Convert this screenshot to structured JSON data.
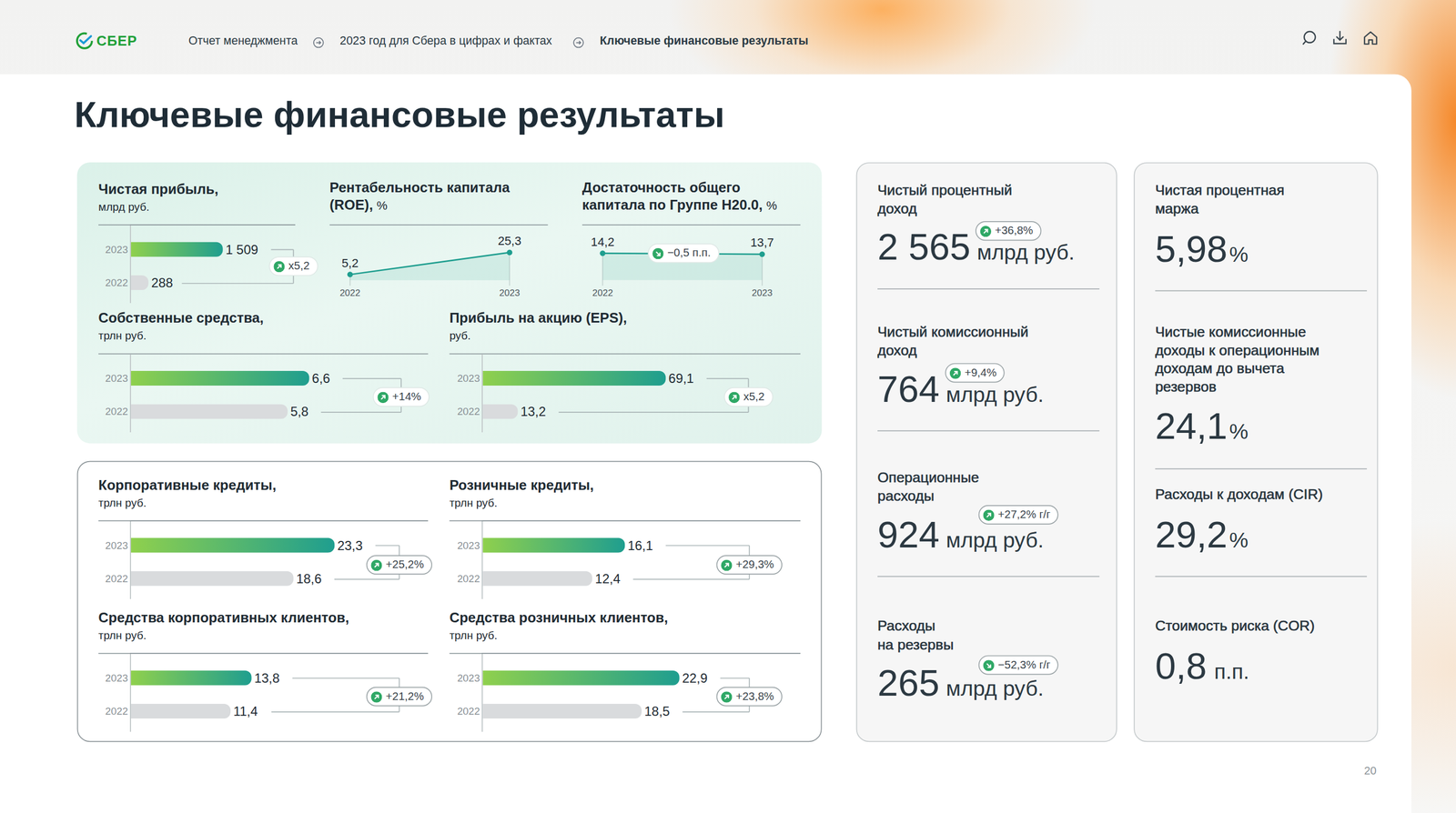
{
  "header": {
    "logo": "СБЕР",
    "breadcrumbs": [
      "Отчет менеджмента",
      "2023 год для Сбера в цифрах и фактах",
      "Ключевые финансовые результаты"
    ]
  },
  "title": "Ключевые финансовые результаты",
  "chart_data": [
    {
      "type": "bar",
      "orientation": "horizontal",
      "title": [
        "Чистая прибыль,"
      ],
      "unit": "млрд руб.",
      "categories": [
        "2023",
        "2022"
      ],
      "values": [
        1509,
        288
      ],
      "value_labels": [
        "1 509",
        "288"
      ],
      "colors": [
        "#1f9e8f",
        "#d9dbdd"
      ],
      "data_labels": true,
      "xlim": [
        0,
        2700
      ],
      "xticks": [],
      "tick_labels": "y",
      "grid": false,
      "annotation": "x5,2"
    },
    {
      "type": "line",
      "title": [
        "Рентабельность капитала",
        "(ROE),"
      ],
      "unit": "%",
      "categories": [
        "2022",
        "2023"
      ],
      "values": [
        5.2,
        25.3
      ],
      "value_labels": [
        "5,2",
        "25,3"
      ],
      "color": "#1f9e8f",
      "marker": "circle",
      "data_labels": true,
      "ylim": [
        -5,
        50
      ],
      "yticks": [],
      "tick_labels": "x",
      "grid": false
    },
    {
      "type": "line",
      "title": [
        "Достаточность общего",
        "капитала по Группе Н20.0,"
      ],
      "unit": "%",
      "categories": [
        "2022",
        "2023"
      ],
      "values": [
        14.2,
        13.7
      ],
      "value_labels": [
        "14,2",
        "13,7"
      ],
      "color": "#1f9e8f",
      "marker": "circle",
      "data_labels": true,
      "ylim": [
        -3,
        29
      ],
      "yticks": [],
      "tick_labels": "x",
      "grid": false,
      "annotation": "−0,5 п.п."
    },
    {
      "type": "bar",
      "orientation": "horizontal",
      "title": [
        "Собственные средства,"
      ],
      "unit": "трлн руб.",
      "categories": [
        "2023",
        "2022"
      ],
      "values": [
        6.6,
        5.8
      ],
      "value_labels": [
        "6,6",
        "5,8"
      ],
      "colors": [
        "#1f9e8f",
        "#d9dbdd"
      ],
      "data_labels": true,
      "xlim": [
        0,
        11
      ],
      "xticks": [],
      "tick_labels": "y",
      "grid": false,
      "annotation": "+14%"
    },
    {
      "type": "bar",
      "orientation": "horizontal",
      "title": [
        "Прибыль на акцию (EPS),"
      ],
      "unit": "руб.",
      "categories": [
        "2023",
        "2022"
      ],
      "values": [
        69.1,
        13.2
      ],
      "value_labels": [
        "69,1",
        "13,2"
      ],
      "colors": [
        "#1f9e8f",
        "#d9dbdd"
      ],
      "data_labels": true,
      "xlim": [
        0,
        120
      ],
      "xticks": [],
      "tick_labels": "y",
      "grid": false,
      "annotation": "x5,2"
    },
    {
      "type": "bar",
      "orientation": "horizontal",
      "title": [
        "Корпоративные кредиты,"
      ],
      "unit": "трлн руб.",
      "categories": [
        "2023",
        "2022"
      ],
      "values": [
        23.3,
        18.6
      ],
      "value_labels": [
        "23,3",
        "18,6"
      ],
      "colors": [
        "#1f9e8f",
        "#d9dbdd"
      ],
      "data_labels": true,
      "xlim": [
        0,
        34
      ],
      "xticks": [],
      "tick_labels": "y",
      "grid": false,
      "annotation": "+25,2%"
    },
    {
      "type": "bar",
      "orientation": "horizontal",
      "title": [
        "Розничные кредиты,"
      ],
      "unit": "трлн руб.",
      "categories": [
        "2023",
        "2022"
      ],
      "values": [
        16.1,
        12.4
      ],
      "value_labels": [
        "16,1",
        "12,4"
      ],
      "colors": [
        "#1f9e8f",
        "#d9dbdd"
      ],
      "data_labels": true,
      "xlim": [
        0,
        36
      ],
      "xticks": [],
      "tick_labels": "y",
      "grid": false,
      "annotation": "+29,3%"
    },
    {
      "type": "bar",
      "orientation": "horizontal",
      "title": [
        "Средства корпоративных клиентов,"
      ],
      "unit": "трлн руб.",
      "categories": [
        "2023",
        "2022"
      ],
      "values": [
        13.8,
        11.4
      ],
      "value_labels": [
        "13,8",
        "11,4"
      ],
      "colors": [
        "#1f9e8f",
        "#d9dbdd"
      ],
      "data_labels": true,
      "xlim": [
        0,
        34
      ],
      "xticks": [],
      "tick_labels": "y",
      "grid": false,
      "annotation": "+21,2%"
    },
    {
      "type": "bar",
      "orientation": "horizontal",
      "title": [
        "Средства розничных клиентов,"
      ],
      "unit": "трлн руб.",
      "categories": [
        "2023",
        "2022"
      ],
      "values": [
        22.9,
        18.5
      ],
      "value_labels": [
        "22,9",
        "18,5"
      ],
      "colors": [
        "#1f9e8f",
        "#d9dbdd"
      ],
      "data_labels": true,
      "xlim": [
        0,
        37
      ],
      "xticks": [],
      "tick_labels": "y",
      "grid": false,
      "annotation": "+23,8%"
    }
  ],
  "kpi_columns": [
    [
      {
        "title": [
          "Чистый процентный",
          "доход"
        ],
        "value": "2 565",
        "unit": "млрд руб.",
        "change": "+36,8%"
      },
      {
        "title": [
          "Чистый комиссионный",
          "доход"
        ],
        "value": "764",
        "unit": "млрд руб.",
        "change": "+9,4%"
      },
      {
        "title": [
          "Операционные",
          "расходы"
        ],
        "value": "924",
        "unit": "млрд руб.",
        "change": "+27,2% г/г"
      },
      {
        "title": [
          "Расходы",
          "на резервы"
        ],
        "value": "265",
        "unit": "млрд руб.",
        "change": "−52,3% г/г"
      }
    ],
    [
      {
        "title": [
          "Чистая процентная",
          "маржа"
        ],
        "value": "5,98",
        "unit": "%"
      },
      {
        "title": [
          "Чистые комиссионные",
          "доходы к операционным",
          "доходам до вычета",
          "резервов"
        ],
        "value": "24,1",
        "unit": "%"
      },
      {
        "title": [
          "Расходы к доходам (CIR)"
        ],
        "value": "29,2",
        "unit": "%"
      },
      {
        "title": [
          "Стоимость риска (COR)"
        ],
        "value": "0,8",
        "unit": "п.п."
      }
    ]
  ],
  "page_number": "20"
}
